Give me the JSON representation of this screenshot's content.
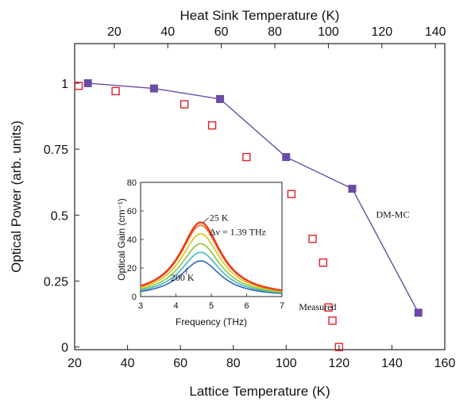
{
  "chart_data": [
    {
      "type": "scatter",
      "title": "",
      "xlabel": "Lattice Temperature (K)",
      "ylabel": "Optical Power (arb. units)",
      "x2label": "Heat Sink Temperature (K)",
      "xlim": [
        20,
        160
      ],
      "ylim": [
        -0.01,
        1.15
      ],
      "x2lim": [
        5.2,
        143.5
      ],
      "xticks": [
        20,
        40,
        60,
        80,
        100,
        120,
        140,
        160
      ],
      "yticks": [
        0,
        0.25,
        0.5,
        0.75,
        1
      ],
      "ytick_labels": [
        "0",
        "0.25",
        "0.5",
        "0.75",
        "1"
      ],
      "x2ticks": [
        20,
        40,
        60,
        80,
        100,
        120,
        140
      ],
      "grid": false,
      "series": [
        {
          "name": "DM-MC",
          "marker": "filled-square",
          "line": true,
          "color": "#6a4ba5",
          "x": [
            25,
            50,
            75,
            100,
            125,
            150
          ],
          "y": [
            1.0,
            0.98,
            0.94,
            0.72,
            0.6,
            0.13
          ]
        },
        {
          "name": "Measured",
          "marker": "open-square",
          "line": false,
          "color": "#e0202a",
          "x": [
            21.5,
            35.5,
            61.5,
            72,
            85,
            102,
            110,
            114,
            116,
            117.5,
            120
          ],
          "y": [
            0.99,
            0.97,
            0.92,
            0.84,
            0.72,
            0.58,
            0.41,
            0.32,
            0.15,
            0.1,
            0.0
          ]
        }
      ],
      "annotations": [
        {
          "text": "DM-MC",
          "x": 134,
          "y": 0.49
        },
        {
          "text": "Measured",
          "x": 119,
          "y": 0.14
        }
      ]
    },
    {
      "type": "line",
      "title": "",
      "xlabel": "Frequency (THz)",
      "ylabel": "Optical Gain (cm⁻¹)",
      "xlim": [
        3,
        7
      ],
      "ylim": [
        0,
        80
      ],
      "xticks": [
        3,
        4,
        5,
        6,
        7
      ],
      "yticks": [
        0,
        20,
        40,
        60,
        80
      ],
      "grid": false,
      "center": 4.7,
      "width": 1.39,
      "series": [
        {
          "name": "25 K",
          "peak": 52,
          "color": "#e8401c"
        },
        {
          "peak": 50,
          "color": "#ef6a1f"
        },
        {
          "peak": 44,
          "color": "#d9c11e"
        },
        {
          "peak": 37,
          "color": "#8cc63e"
        },
        {
          "peak": 31,
          "color": "#3fb7c8"
        },
        {
          "name": "200 K",
          "peak": 25,
          "color": "#3563b0"
        }
      ],
      "annotations": [
        {
          "text": "25 K",
          "x": 4.95,
          "y": 53
        },
        {
          "text": "Δν = 1.39 THz",
          "x": 4.95,
          "y": 43
        },
        {
          "text": "200 K",
          "x": 3.85,
          "y": 11
        }
      ]
    }
  ]
}
